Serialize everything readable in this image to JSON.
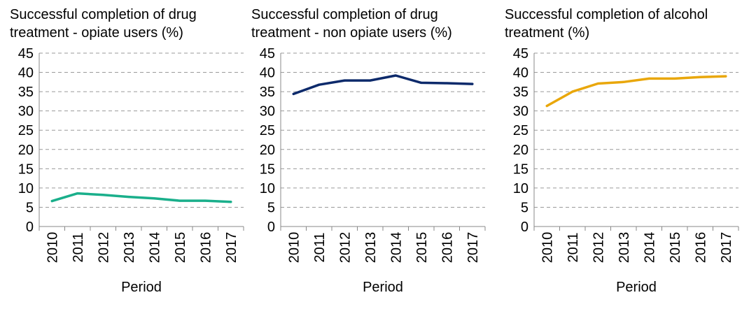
{
  "chart_data": [
    {
      "type": "line",
      "title": "Successful completion of drug treatment - opiate users (%)",
      "xlabel": "Period",
      "ylabel": "",
      "categories": [
        "2010",
        "2011",
        "2012",
        "2013",
        "2014",
        "2015",
        "2016",
        "2017"
      ],
      "values": [
        6.6,
        8.6,
        8.2,
        7.7,
        7.3,
        6.7,
        6.7,
        6.4
      ],
      "ylim": [
        0,
        45
      ],
      "yticks": [
        0,
        5,
        10,
        15,
        20,
        25,
        30,
        35,
        40,
        45
      ],
      "grid": true,
      "color": "#1aaf8b"
    },
    {
      "type": "line",
      "title": "Successful completion of drug treatment - non opiate users (%)",
      "xlabel": "Period",
      "ylabel": "",
      "categories": [
        "2010",
        "2011",
        "2012",
        "2013",
        "2014",
        "2015",
        "2016",
        "2017"
      ],
      "values": [
        34.4,
        36.8,
        37.9,
        37.9,
        39.2,
        37.3,
        37.2,
        37.0
      ],
      "ylim": [
        0,
        45
      ],
      "yticks": [
        0,
        5,
        10,
        15,
        20,
        25,
        30,
        35,
        40,
        45
      ],
      "grid": true,
      "color": "#0d2a6b"
    },
    {
      "type": "line",
      "title": "Successful completion of alcohol treatment (%)",
      "xlabel": "Period",
      "ylabel": "",
      "categories": [
        "2010",
        "2011",
        "2012",
        "2013",
        "2014",
        "2015",
        "2016",
        "2017"
      ],
      "values": [
        31.3,
        35.0,
        37.1,
        37.5,
        38.4,
        38.4,
        38.8,
        39.0
      ],
      "ylim": [
        0,
        45
      ],
      "yticks": [
        0,
        5,
        10,
        15,
        20,
        25,
        30,
        35,
        40,
        45
      ],
      "grid": true,
      "color": "#e9a70b"
    }
  ]
}
